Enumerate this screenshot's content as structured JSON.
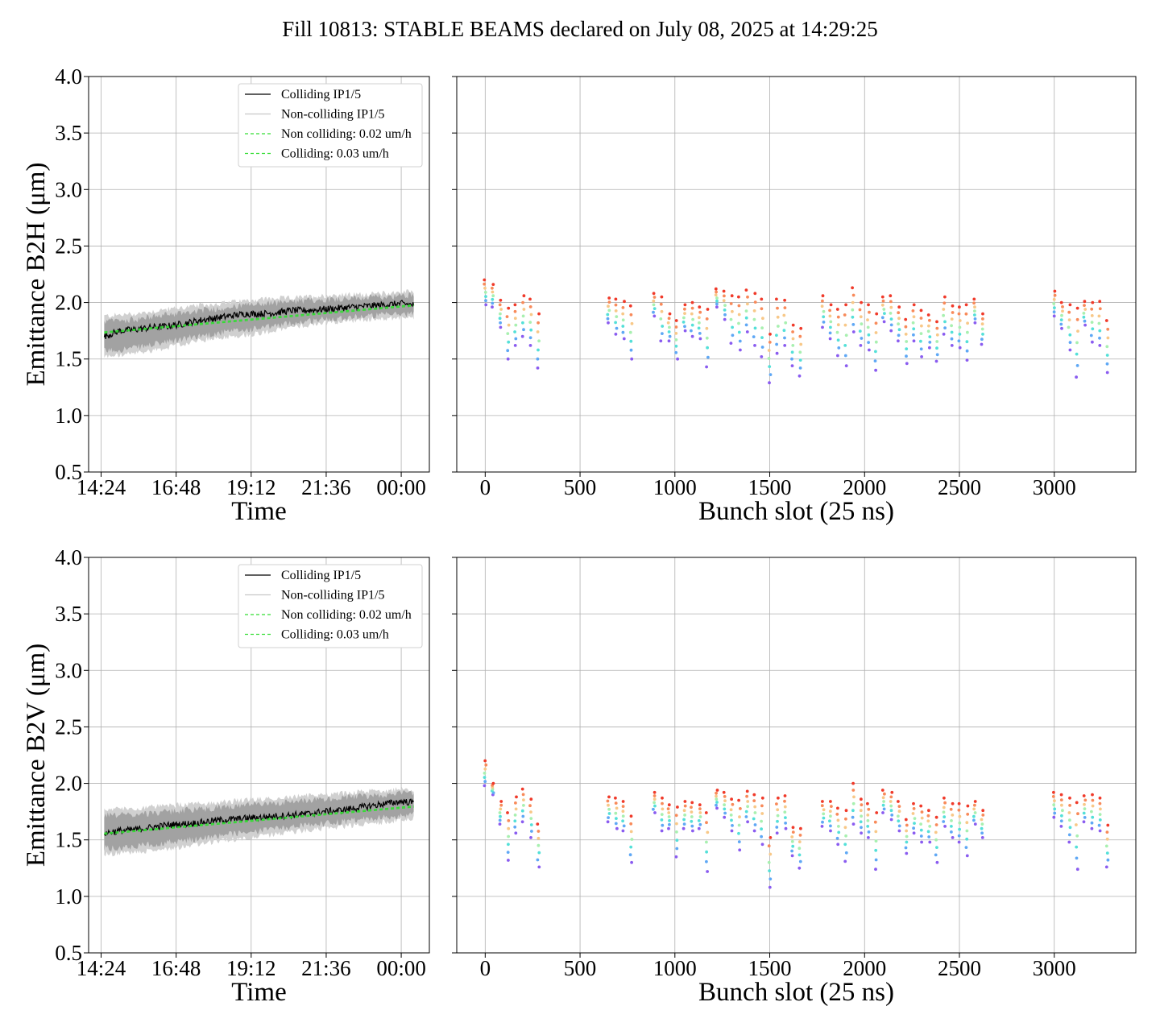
{
  "figure": {
    "title": "Fill 10813: STABLE BEAMS declared on July 08, 2025 at 14:29:25"
  },
  "colors": {
    "colliding": "#000000",
    "non_colliding": "#c8c8c8",
    "band_dark": "#9a9a9a",
    "band_light": "#d0d0d0",
    "fit": "#33dd33",
    "grid": "#b0b0b0",
    "bunch_palette": [
      "#8a5cf0",
      "#5fa8f5",
      "#54e0d8",
      "#a8f0b0",
      "#f8c888",
      "#f88a5a",
      "#f03a2a"
    ]
  },
  "chart_data": [
    {
      "id": "b2h_time",
      "type": "line",
      "xlabel": "Time",
      "ylabel": "Emittance B2H (μm)",
      "x_ticks": [
        "14:24",
        "16:48",
        "19:12",
        "21:36",
        "00:00"
      ],
      "x_tick_hours": [
        14.4,
        16.8,
        19.2,
        21.6,
        24.0
      ],
      "xlim_hours": [
        14.0,
        24.9
      ],
      "ylim": [
        0.5,
        4.0
      ],
      "y_ticks": [
        "0.5",
        "1.0",
        "1.5",
        "2.0",
        "2.5",
        "3.0",
        "3.5",
        "4.0"
      ],
      "grid": true,
      "legend_position": "upper right",
      "legend": [
        {
          "label": "Colliding IP1/5",
          "style": "solid",
          "color": "#000000"
        },
        {
          "label": "Non-colliding IP1/5",
          "style": "solid",
          "color": "#c8c8c8"
        },
        {
          "label": "Non colliding: 0.02 um/h",
          "style": "dashed",
          "color": "#33dd33"
        },
        {
          "label": "Colliding: 0.03 um/h",
          "style": "dashed",
          "color": "#33dd33"
        }
      ],
      "series": [
        {
          "name": "Colliding IP1/5",
          "x_hours": [
            14.5,
            15.0,
            15.5,
            16.0,
            16.5,
            17.0,
            17.5,
            18.0,
            18.5,
            19.0,
            19.5,
            20.0,
            20.5,
            21.0,
            21.5,
            22.0,
            22.5,
            23.0,
            23.5,
            24.0,
            24.4
          ],
          "values": [
            1.7,
            1.75,
            1.76,
            1.78,
            1.79,
            1.81,
            1.84,
            1.86,
            1.88,
            1.9,
            1.9,
            1.91,
            1.93,
            1.93,
            1.94,
            1.95,
            1.96,
            1.97,
            1.98,
            1.99,
            1.98
          ]
        },
        {
          "name": "Non-colliding IP1/5",
          "x_hours": [
            14.5,
            15.5,
            16.5,
            17.5,
            18.5,
            19.5,
            20.5,
            21.5,
            22.5,
            23.5,
            24.4
          ],
          "band_low": [
            1.52,
            1.55,
            1.6,
            1.66,
            1.7,
            1.73,
            1.78,
            1.82,
            1.84,
            1.86,
            1.87
          ],
          "band_high": [
            1.88,
            1.9,
            1.94,
            1.97,
            2.0,
            2.03,
            2.04,
            2.06,
            2.07,
            2.08,
            2.1
          ]
        },
        {
          "name": "Non colliding: 0.02 um/h",
          "x_hours": [
            14.5,
            24.4
          ],
          "values": [
            1.73,
            1.97
          ]
        },
        {
          "name": "Colliding: 0.03 um/h",
          "x_hours": [
            14.5,
            24.4
          ],
          "values": [
            1.74,
            1.98
          ]
        }
      ]
    },
    {
      "id": "b2h_bunch",
      "type": "scatter",
      "xlabel": "Bunch slot (25 ns)",
      "x_ticks": [
        "0",
        "500",
        "1000",
        "1500",
        "2000",
        "2500",
        "3000"
      ],
      "xlim": [
        -150,
        3430
      ],
      "ylim": [
        0.5,
        4.0
      ],
      "grid": true,
      "trains": [
        0,
        40,
        80,
        120,
        160,
        200,
        240,
        280,
        650,
        690,
        730,
        770,
        890,
        930,
        970,
        1010,
        1050,
        1090,
        1130,
        1170,
        1220,
        1260,
        1300,
        1340,
        1380,
        1420,
        1460,
        1500,
        1540,
        1580,
        1620,
        1660,
        1780,
        1820,
        1860,
        1900,
        1940,
        1980,
        2020,
        2060,
        2100,
        2140,
        2180,
        2220,
        2260,
        2300,
        2340,
        2380,
        2420,
        2460,
        2500,
        2540,
        2580,
        2620,
        3000,
        3040,
        3080,
        3120,
        3160,
        3200,
        3240,
        3280
      ],
      "train_max": [
        2.2,
        2.16,
        2.02,
        1.95,
        1.98,
        2.06,
        2.03,
        1.9,
        2.04,
        2.03,
        2.01,
        1.97,
        2.08,
        2.05,
        1.9,
        1.84,
        1.98,
        2.0,
        1.96,
        1.94,
        2.12,
        2.1,
        2.06,
        2.05,
        2.11,
        2.08,
        2.03,
        1.72,
        2.03,
        2.02,
        1.8,
        1.77,
        2.06,
        1.98,
        1.94,
        1.98,
        2.13,
        2.0,
        1.98,
        1.9,
        2.05,
        2.06,
        1.96,
        1.85,
        1.98,
        1.93,
        1.89,
        1.83,
        2.05,
        1.97,
        1.96,
        1.98,
        2.03,
        1.9,
        2.1,
        2.0,
        1.98,
        1.95,
        2.01,
        2.0,
        2.01,
        1.84
      ],
      "train_min": [
        1.98,
        1.96,
        1.78,
        1.5,
        1.62,
        1.7,
        1.62,
        1.42,
        1.82,
        1.72,
        1.68,
        1.5,
        1.88,
        1.66,
        1.66,
        1.5,
        1.75,
        1.7,
        1.68,
        1.43,
        1.96,
        1.85,
        1.64,
        1.58,
        1.74,
        1.62,
        1.52,
        1.29,
        1.55,
        1.62,
        1.44,
        1.35,
        1.78,
        1.68,
        1.53,
        1.44,
        1.74,
        1.62,
        1.58,
        1.4,
        1.83,
        1.75,
        1.66,
        1.46,
        1.66,
        1.52,
        1.6,
        1.48,
        1.72,
        1.62,
        1.6,
        1.49,
        1.82,
        1.63,
        1.88,
        1.77,
        1.58,
        1.34,
        1.8,
        1.65,
        1.62,
        1.38
      ]
    },
    {
      "id": "b2v_time",
      "type": "line",
      "xlabel": "Time",
      "ylabel": "Emittance B2V (μm)",
      "x_ticks": [
        "14:24",
        "16:48",
        "19:12",
        "21:36",
        "00:00"
      ],
      "x_tick_hours": [
        14.4,
        16.8,
        19.2,
        21.6,
        24.0
      ],
      "xlim_hours": [
        14.0,
        24.9
      ],
      "ylim": [
        0.5,
        4.0
      ],
      "y_ticks": [
        "0.5",
        "1.0",
        "1.5",
        "2.0",
        "2.5",
        "3.0",
        "3.5",
        "4.0"
      ],
      "grid": true,
      "legend_position": "upper right",
      "legend": [
        {
          "label": "Colliding IP1/5",
          "style": "solid",
          "color": "#000000"
        },
        {
          "label": "Non-colliding IP1/5",
          "style": "solid",
          "color": "#c8c8c8"
        },
        {
          "label": "Non colliding: 0.02 um/h",
          "style": "dashed",
          "color": "#33dd33"
        },
        {
          "label": "Colliding: 0.03 um/h",
          "style": "dashed",
          "color": "#33dd33"
        }
      ],
      "series": [
        {
          "name": "Colliding IP1/5",
          "x_hours": [
            14.5,
            15.0,
            15.5,
            16.0,
            16.5,
            17.0,
            17.5,
            18.0,
            18.5,
            19.0,
            19.5,
            20.0,
            20.5,
            21.0,
            21.5,
            22.0,
            22.5,
            23.0,
            23.5,
            24.0,
            24.4
          ],
          "values": [
            1.56,
            1.58,
            1.59,
            1.61,
            1.63,
            1.64,
            1.65,
            1.67,
            1.68,
            1.69,
            1.7,
            1.71,
            1.72,
            1.73,
            1.75,
            1.76,
            1.78,
            1.8,
            1.82,
            1.84,
            1.83
          ]
        },
        {
          "name": "Non-colliding IP1/5",
          "x_hours": [
            14.5,
            15.5,
            16.5,
            17.5,
            18.5,
            19.5,
            20.5,
            21.5,
            22.5,
            23.5,
            24.4
          ],
          "band_low": [
            1.37,
            1.39,
            1.42,
            1.46,
            1.5,
            1.53,
            1.57,
            1.6,
            1.63,
            1.66,
            1.69
          ],
          "band_high": [
            1.77,
            1.78,
            1.8,
            1.82,
            1.84,
            1.86,
            1.88,
            1.9,
            1.92,
            1.94,
            1.95
          ]
        },
        {
          "name": "Non colliding: 0.02 um/h",
          "x_hours": [
            14.5,
            24.4
          ],
          "values": [
            1.55,
            1.79
          ]
        },
        {
          "name": "Colliding: 0.03 um/h",
          "x_hours": [
            14.5,
            24.4
          ],
          "values": [
            1.56,
            1.8
          ]
        }
      ]
    },
    {
      "id": "b2v_bunch",
      "type": "scatter",
      "xlabel": "Bunch slot (25 ns)",
      "x_ticks": [
        "0",
        "500",
        "1000",
        "1500",
        "2000",
        "2500",
        "3000"
      ],
      "xlim": [
        -150,
        3430
      ],
      "ylim": [
        0.5,
        4.0
      ],
      "grid": true,
      "trains": [
        0,
        40,
        80,
        120,
        160,
        200,
        240,
        280,
        650,
        690,
        730,
        770,
        890,
        930,
        970,
        1010,
        1050,
        1090,
        1130,
        1170,
        1220,
        1260,
        1300,
        1340,
        1380,
        1420,
        1460,
        1500,
        1540,
        1580,
        1620,
        1660,
        1780,
        1820,
        1860,
        1900,
        1940,
        1980,
        2020,
        2060,
        2100,
        2140,
        2180,
        2220,
        2260,
        2300,
        2340,
        2380,
        2420,
        2460,
        2500,
        2540,
        2580,
        2620,
        3000,
        3040,
        3080,
        3120,
        3160,
        3200,
        3240,
        3280
      ],
      "train_max": [
        2.2,
        2.0,
        1.84,
        1.74,
        1.88,
        1.95,
        1.86,
        1.64,
        1.88,
        1.87,
        1.84,
        1.71,
        1.92,
        1.87,
        1.81,
        1.79,
        1.84,
        1.83,
        1.81,
        1.74,
        1.94,
        1.92,
        1.86,
        1.85,
        1.93,
        1.9,
        1.87,
        1.52,
        1.87,
        1.89,
        1.61,
        1.6,
        1.84,
        1.84,
        1.78,
        1.76,
        2.0,
        1.86,
        1.82,
        1.74,
        1.94,
        1.92,
        1.84,
        1.68,
        1.82,
        1.8,
        1.76,
        1.7,
        1.87,
        1.82,
        1.82,
        1.8,
        1.84,
        1.76,
        1.92,
        1.9,
        1.87,
        1.83,
        1.89,
        1.9,
        1.87,
        1.63
      ],
      "train_min": [
        1.98,
        1.9,
        1.64,
        1.32,
        1.56,
        1.66,
        1.52,
        1.26,
        1.66,
        1.6,
        1.58,
        1.3,
        1.74,
        1.58,
        1.6,
        1.35,
        1.6,
        1.58,
        1.6,
        1.22,
        1.78,
        1.7,
        1.58,
        1.41,
        1.66,
        1.58,
        1.46,
        1.08,
        1.56,
        1.6,
        1.36,
        1.25,
        1.62,
        1.58,
        1.46,
        1.31,
        1.64,
        1.56,
        1.52,
        1.24,
        1.74,
        1.68,
        1.58,
        1.38,
        1.56,
        1.48,
        1.48,
        1.3,
        1.62,
        1.52,
        1.48,
        1.36,
        1.64,
        1.52,
        1.7,
        1.62,
        1.48,
        1.24,
        1.66,
        1.6,
        1.58,
        1.26
      ]
    }
  ]
}
